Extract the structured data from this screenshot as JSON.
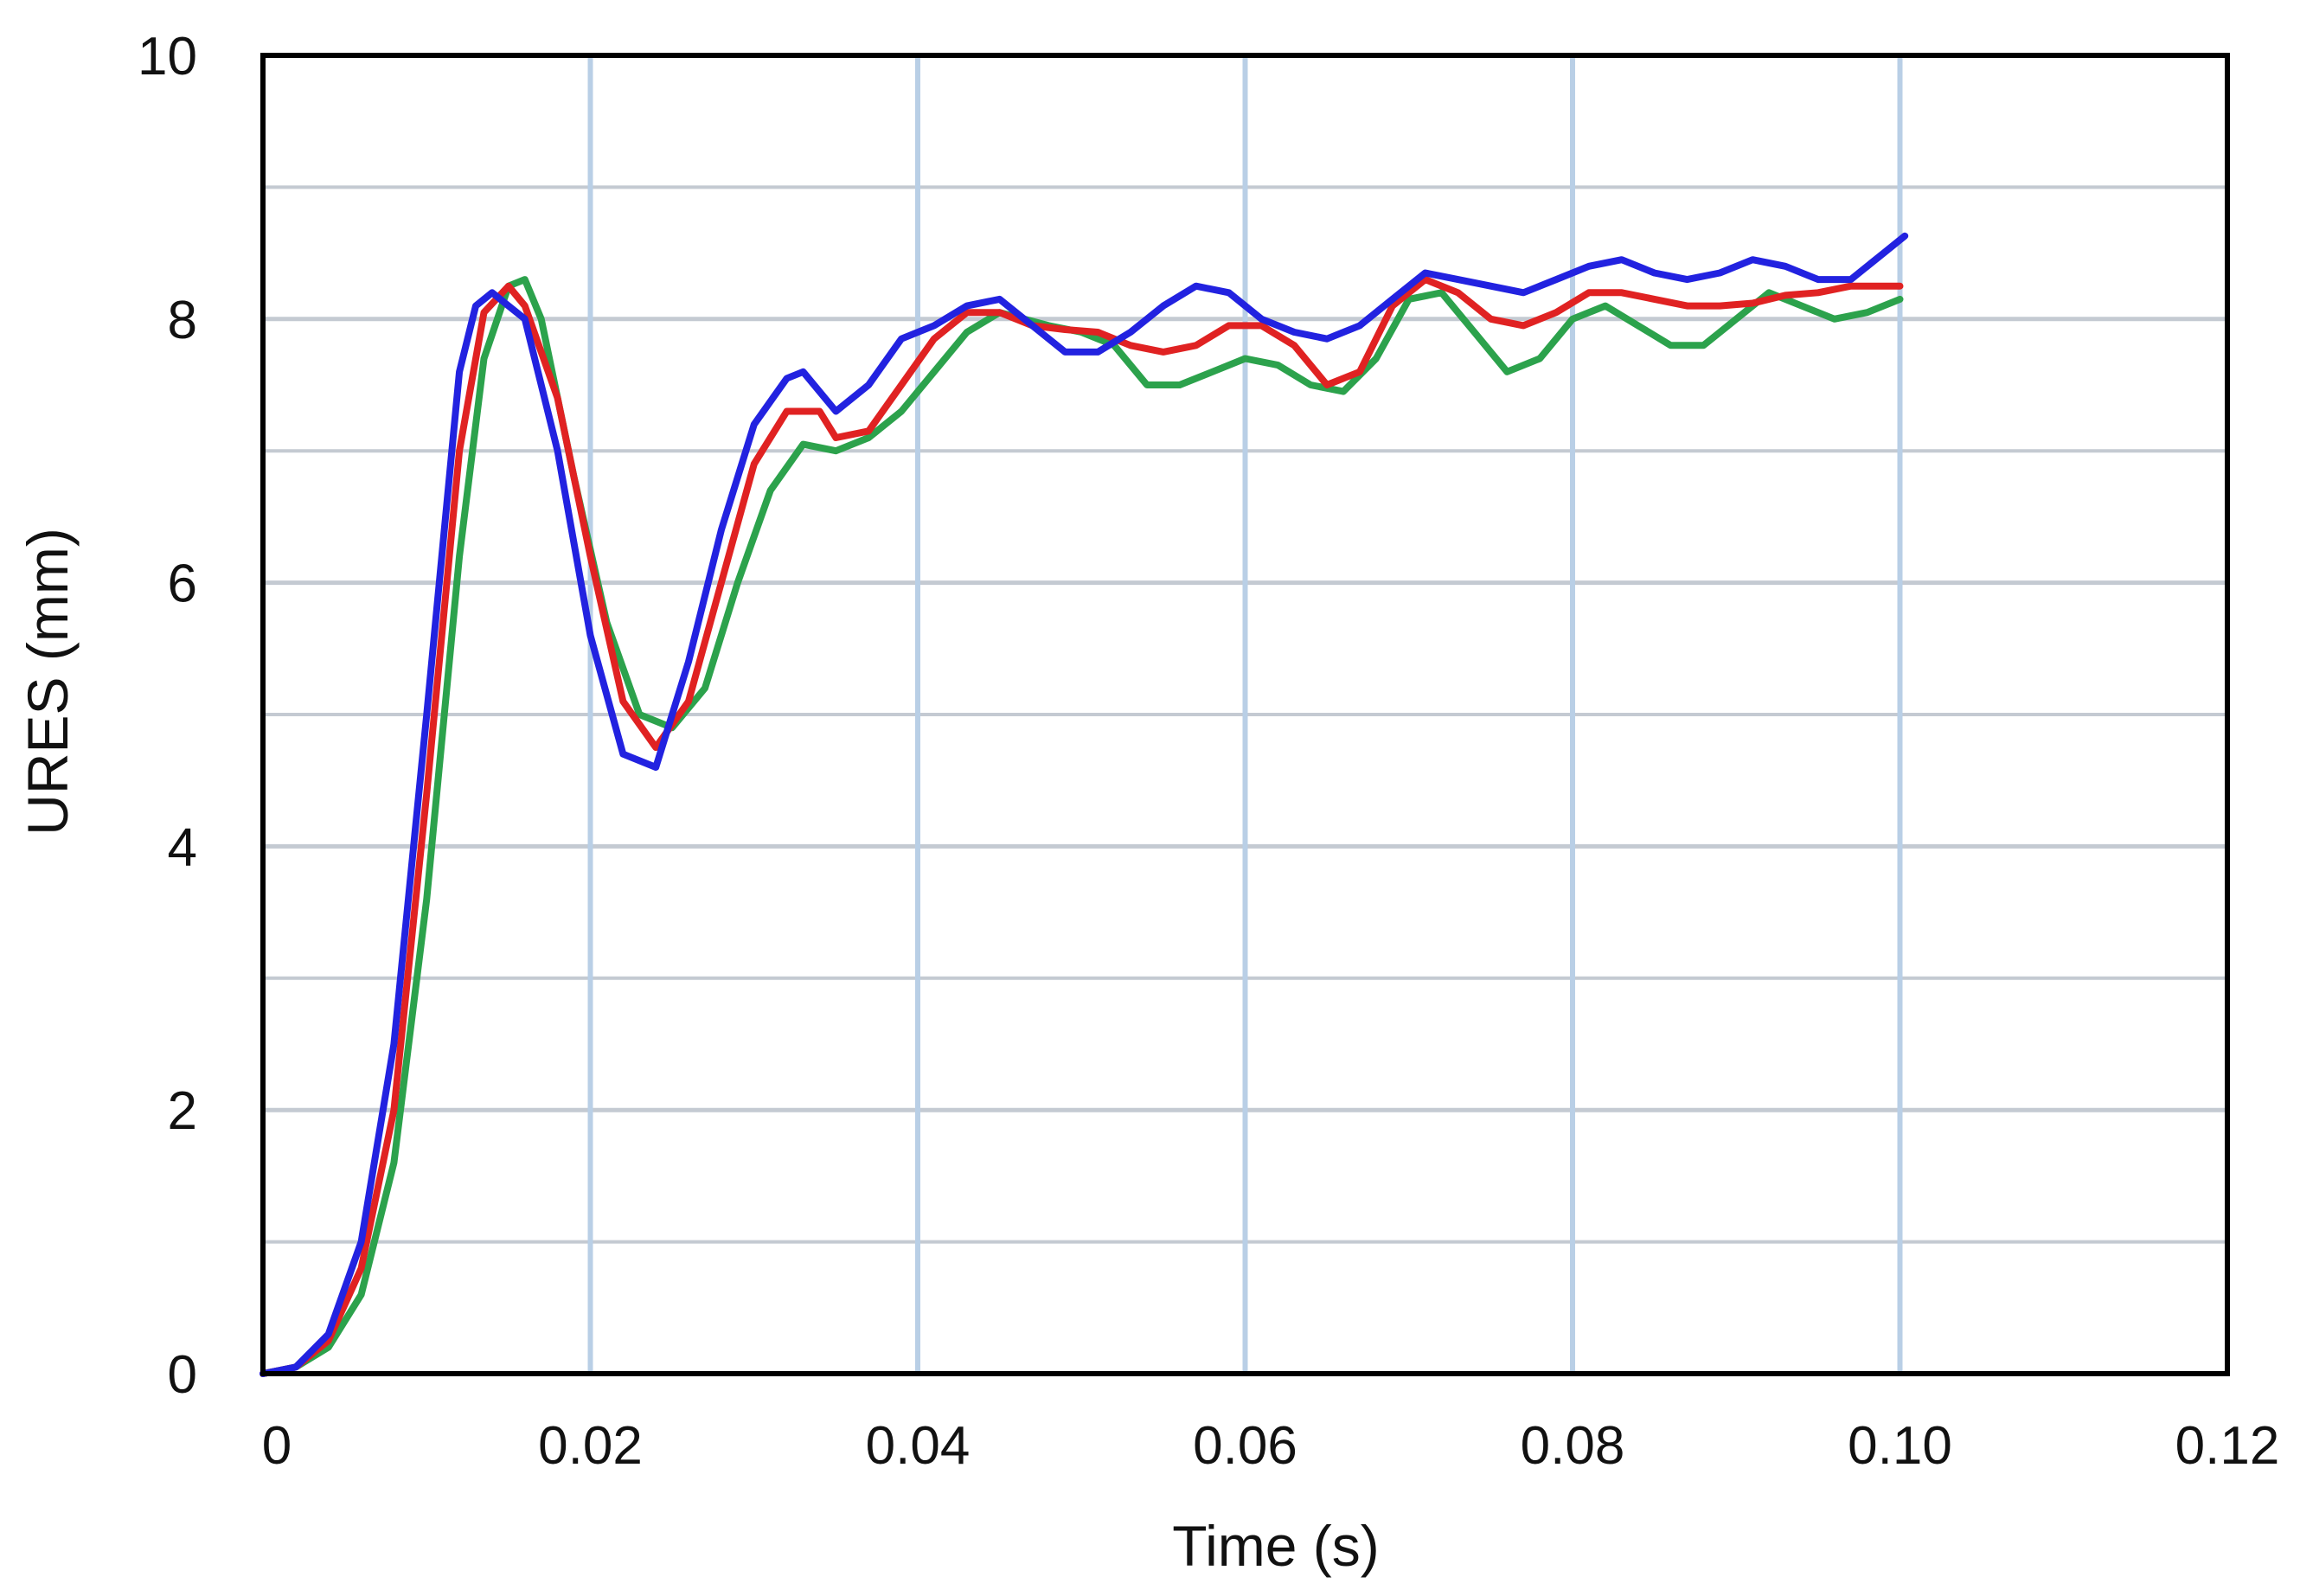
{
  "chart_data": {
    "type": "line",
    "title": "",
    "xlabel": "Time (s)",
    "ylabel": "URES (mm)",
    "xlim": [
      0,
      0.12
    ],
    "ylim": [
      0,
      10
    ],
    "x_ticks": [
      0,
      0.02,
      0.04,
      0.06,
      0.08,
      0.1,
      0.12
    ],
    "x_tick_labels": [
      "0",
      "0.02",
      "0.04",
      "0.06",
      "0.08",
      "0.10",
      "0.12"
    ],
    "y_ticks": [
      0,
      2,
      4,
      6,
      8,
      10
    ],
    "y_tick_labels": [
      "0",
      "2",
      "4",
      "6",
      "8",
      "10"
    ],
    "y_minor_grid": [
      1,
      3,
      5,
      7,
      9
    ],
    "grid": true,
    "legend": "none",
    "series": [
      {
        "color": "#2ca24c",
        "points": [
          [
            0,
            0
          ],
          [
            0.002,
            0.05
          ],
          [
            0.004,
            0.2
          ],
          [
            0.006,
            0.6
          ],
          [
            0.008,
            1.6
          ],
          [
            0.01,
            3.6
          ],
          [
            0.012,
            6.2
          ],
          [
            0.0135,
            7.7
          ],
          [
            0.015,
            8.25
          ],
          [
            0.016,
            8.3
          ],
          [
            0.017,
            8.0
          ],
          [
            0.019,
            6.8
          ],
          [
            0.021,
            5.7
          ],
          [
            0.023,
            5.0
          ],
          [
            0.025,
            4.9
          ],
          [
            0.027,
            5.2
          ],
          [
            0.029,
            6.0
          ],
          [
            0.031,
            6.7
          ],
          [
            0.033,
            7.05
          ],
          [
            0.035,
            7.0
          ],
          [
            0.037,
            7.1
          ],
          [
            0.039,
            7.3
          ],
          [
            0.041,
            7.6
          ],
          [
            0.043,
            7.9
          ],
          [
            0.045,
            8.05
          ],
          [
            0.048,
            7.95
          ],
          [
            0.05,
            7.9
          ],
          [
            0.052,
            7.8
          ],
          [
            0.054,
            7.5
          ],
          [
            0.056,
            7.5
          ],
          [
            0.058,
            7.6
          ],
          [
            0.06,
            7.7
          ],
          [
            0.062,
            7.65
          ],
          [
            0.064,
            7.5
          ],
          [
            0.066,
            7.45
          ],
          [
            0.068,
            7.7
          ],
          [
            0.07,
            8.15
          ],
          [
            0.072,
            8.2
          ],
          [
            0.074,
            7.9
          ],
          [
            0.076,
            7.6
          ],
          [
            0.078,
            7.7
          ],
          [
            0.08,
            8.0
          ],
          [
            0.082,
            8.1
          ],
          [
            0.084,
            7.95
          ],
          [
            0.086,
            7.8
          ],
          [
            0.088,
            7.8
          ],
          [
            0.09,
            8.0
          ],
          [
            0.092,
            8.2
          ],
          [
            0.094,
            8.1
          ],
          [
            0.096,
            8.0
          ],
          [
            0.098,
            8.05
          ],
          [
            0.1,
            8.15
          ]
        ]
      },
      {
        "color": "#e02222",
        "points": [
          [
            0,
            0
          ],
          [
            0.002,
            0.05
          ],
          [
            0.004,
            0.25
          ],
          [
            0.006,
            0.8
          ],
          [
            0.008,
            2.0
          ],
          [
            0.01,
            4.4
          ],
          [
            0.012,
            7.0
          ],
          [
            0.0135,
            8.05
          ],
          [
            0.015,
            8.25
          ],
          [
            0.016,
            8.1
          ],
          [
            0.018,
            7.4
          ],
          [
            0.02,
            6.2
          ],
          [
            0.022,
            5.1
          ],
          [
            0.024,
            4.75
          ],
          [
            0.026,
            5.1
          ],
          [
            0.028,
            6.0
          ],
          [
            0.03,
            6.9
          ],
          [
            0.032,
            7.3
          ],
          [
            0.034,
            7.3
          ],
          [
            0.035,
            7.1
          ],
          [
            0.037,
            7.15
          ],
          [
            0.039,
            7.5
          ],
          [
            0.041,
            7.85
          ],
          [
            0.043,
            8.05
          ],
          [
            0.045,
            8.05
          ],
          [
            0.047,
            7.95
          ],
          [
            0.049,
            7.92
          ],
          [
            0.051,
            7.9
          ],
          [
            0.053,
            7.8
          ],
          [
            0.055,
            7.75
          ],
          [
            0.057,
            7.8
          ],
          [
            0.059,
            7.95
          ],
          [
            0.061,
            7.95
          ],
          [
            0.063,
            7.8
          ],
          [
            0.065,
            7.5
          ],
          [
            0.067,
            7.6
          ],
          [
            0.069,
            8.1
          ],
          [
            0.071,
            8.3
          ],
          [
            0.073,
            8.2
          ],
          [
            0.075,
            8.0
          ],
          [
            0.077,
            7.95
          ],
          [
            0.079,
            8.05
          ],
          [
            0.081,
            8.2
          ],
          [
            0.083,
            8.2
          ],
          [
            0.085,
            8.15
          ],
          [
            0.087,
            8.1
          ],
          [
            0.089,
            8.1
          ],
          [
            0.091,
            8.12
          ],
          [
            0.093,
            8.18
          ],
          [
            0.095,
            8.2
          ],
          [
            0.097,
            8.25
          ],
          [
            0.1,
            8.25
          ]
        ]
      },
      {
        "color": "#2222e0",
        "points": [
          [
            0,
            0
          ],
          [
            0.002,
            0.05
          ],
          [
            0.004,
            0.3
          ],
          [
            0.006,
            1.0
          ],
          [
            0.008,
            2.5
          ],
          [
            0.01,
            5.0
          ],
          [
            0.012,
            7.6
          ],
          [
            0.013,
            8.1
          ],
          [
            0.014,
            8.2
          ],
          [
            0.015,
            8.1
          ],
          [
            0.016,
            8.0
          ],
          [
            0.018,
            7.0
          ],
          [
            0.02,
            5.6
          ],
          [
            0.022,
            4.7
          ],
          [
            0.024,
            4.6
          ],
          [
            0.026,
            5.4
          ],
          [
            0.028,
            6.4
          ],
          [
            0.03,
            7.2
          ],
          [
            0.032,
            7.55
          ],
          [
            0.033,
            7.6
          ],
          [
            0.035,
            7.3
          ],
          [
            0.037,
            7.5
          ],
          [
            0.039,
            7.85
          ],
          [
            0.041,
            7.95
          ],
          [
            0.043,
            8.1
          ],
          [
            0.045,
            8.15
          ],
          [
            0.047,
            7.95
          ],
          [
            0.049,
            7.75
          ],
          [
            0.051,
            7.75
          ],
          [
            0.053,
            7.9
          ],
          [
            0.055,
            8.1
          ],
          [
            0.057,
            8.25
          ],
          [
            0.059,
            8.2
          ],
          [
            0.061,
            8.0
          ],
          [
            0.063,
            7.9
          ],
          [
            0.065,
            7.85
          ],
          [
            0.067,
            7.95
          ],
          [
            0.069,
            8.15
          ],
          [
            0.071,
            8.35
          ],
          [
            0.073,
            8.3
          ],
          [
            0.075,
            8.25
          ],
          [
            0.077,
            8.2
          ],
          [
            0.079,
            8.3
          ],
          [
            0.081,
            8.4
          ],
          [
            0.083,
            8.45
          ],
          [
            0.085,
            8.35
          ],
          [
            0.087,
            8.3
          ],
          [
            0.089,
            8.35
          ],
          [
            0.091,
            8.45
          ],
          [
            0.093,
            8.4
          ],
          [
            0.095,
            8.3
          ],
          [
            0.097,
            8.3
          ],
          [
            0.099,
            8.5
          ],
          [
            0.1003,
            8.63
          ]
        ]
      }
    ]
  }
}
